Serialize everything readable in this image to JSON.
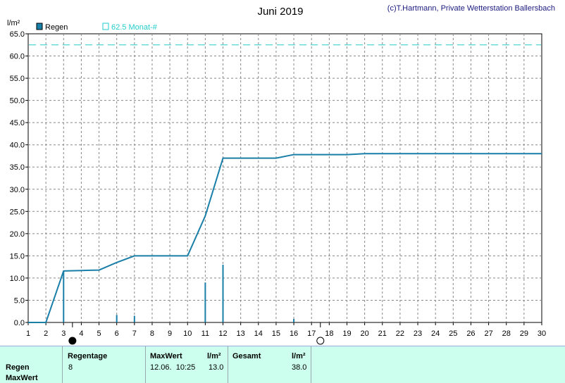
{
  "header": {
    "title": "Juni 2019",
    "credit": "(c)T.Hartmann, Private Wetterstation Ballersbach",
    "unit": "l/m²"
  },
  "legend": {
    "series_label": "Regen",
    "monthly_label": "62.5 Monat-#"
  },
  "colors": {
    "series": "#1a7fa8",
    "reference": "#22cccc",
    "panel": "#ccffee"
  },
  "chart_data": {
    "type": "line",
    "xlim": [
      1,
      30
    ],
    "ylim": [
      0,
      65
    ],
    "x_ticks": [
      1,
      2,
      3,
      4,
      5,
      6,
      7,
      8,
      9,
      10,
      11,
      12,
      13,
      14,
      15,
      16,
      17,
      18,
      19,
      20,
      21,
      22,
      23,
      24,
      25,
      26,
      27,
      28,
      29,
      30
    ],
    "y_ticks": [
      "0.0",
      "5.0",
      "10.0",
      "15.0",
      "20.0",
      "25.0",
      "30.0",
      "35.0",
      "40.0",
      "45.0",
      "50.0",
      "55.0",
      "60.0",
      "65.0"
    ],
    "grid": true,
    "reference_line": 62.5,
    "series": [
      {
        "name": "Regen",
        "points": [
          [
            1,
            0
          ],
          [
            2,
            0
          ],
          [
            3,
            11.6
          ],
          [
            4,
            11.7
          ],
          [
            5,
            11.8
          ],
          [
            6,
            13.5
          ],
          [
            7,
            15.0
          ],
          [
            8,
            15.0
          ],
          [
            9,
            15.0
          ],
          [
            10,
            15.0
          ],
          [
            11,
            24.0
          ],
          [
            12,
            37.0
          ],
          [
            13,
            37.0
          ],
          [
            14,
            37.0
          ],
          [
            15,
            37.0
          ],
          [
            16,
            37.8
          ],
          [
            17,
            37.8
          ],
          [
            18,
            37.8
          ],
          [
            19,
            37.8
          ],
          [
            20,
            38.0
          ],
          [
            21,
            38.0
          ],
          [
            22,
            38.0
          ],
          [
            23,
            38.0
          ],
          [
            24,
            38.0
          ],
          [
            25,
            38.0
          ],
          [
            26,
            38.0
          ],
          [
            27,
            38.0
          ],
          [
            28,
            38.0
          ],
          [
            29,
            38.0
          ],
          [
            30,
            38.0
          ]
        ]
      }
    ],
    "daily_bars": [
      [
        3,
        11.6
      ],
      [
        6,
        1.7
      ],
      [
        7,
        1.5
      ],
      [
        11,
        9.0
      ],
      [
        12,
        13.0
      ],
      [
        16,
        0.8
      ]
    ],
    "moon_phases": [
      {
        "phase": "new",
        "x": 3.5
      },
      {
        "phase": "full",
        "x": 17.5
      }
    ]
  },
  "summary": {
    "row_labels": [
      "Regen",
      "MaxWert"
    ],
    "regentage_header": "Regentage",
    "regentage_value": "8",
    "maxwert_header": "MaxWert",
    "maxwert_unit": "l/m²",
    "maxwert_datetime": "12.06.  10:25",
    "maxwert_value": "13.0",
    "gesamt_header": "Gesamt",
    "gesamt_unit": "l/m²",
    "gesamt_value": "38.0"
  }
}
